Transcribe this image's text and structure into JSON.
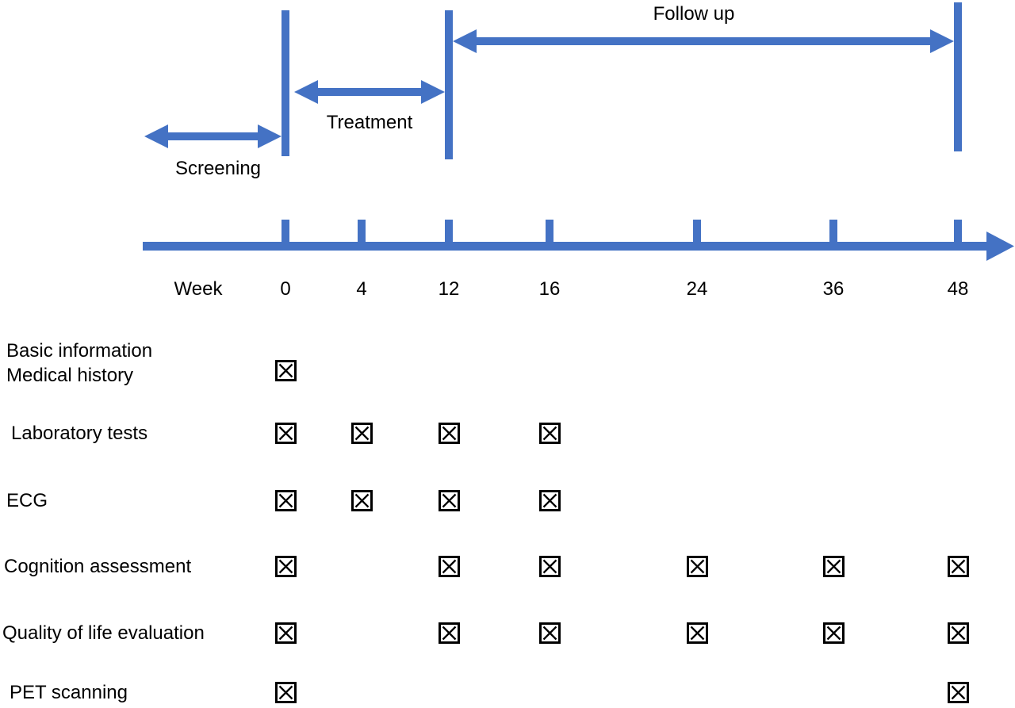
{
  "figure": {
    "accent_color": "#4472C4",
    "text_color": "#000000",
    "phases": {
      "screening": "Screening",
      "treatment": "Treatment",
      "followup": "Follow up"
    },
    "axis": {
      "label": "Week",
      "ticks": [
        "0",
        "4",
        "12",
        "16",
        "24",
        "36",
        "48"
      ]
    },
    "mark_icon": "ballot-box-with-x",
    "rows": [
      {
        "label_lines": [
          "Basic information",
          "Medical history"
        ],
        "checked_weeks": [
          "0"
        ]
      },
      {
        "label_lines": [
          "Laboratory tests"
        ],
        "checked_weeks": [
          "0",
          "4",
          "12",
          "16"
        ]
      },
      {
        "label_lines": [
          "ECG"
        ],
        "checked_weeks": [
          "0",
          "4",
          "12",
          "16"
        ]
      },
      {
        "label_lines": [
          "Cognition assessment"
        ],
        "checked_weeks": [
          "0",
          "12",
          "16",
          "24",
          "36",
          "48"
        ]
      },
      {
        "label_lines": [
          "Quality of life evaluation"
        ],
        "checked_weeks": [
          "0",
          "12",
          "16",
          "24",
          "36",
          "48"
        ]
      },
      {
        "label_lines": [
          "PET scanning"
        ],
        "checked_weeks": [
          "0",
          "48"
        ]
      }
    ]
  }
}
